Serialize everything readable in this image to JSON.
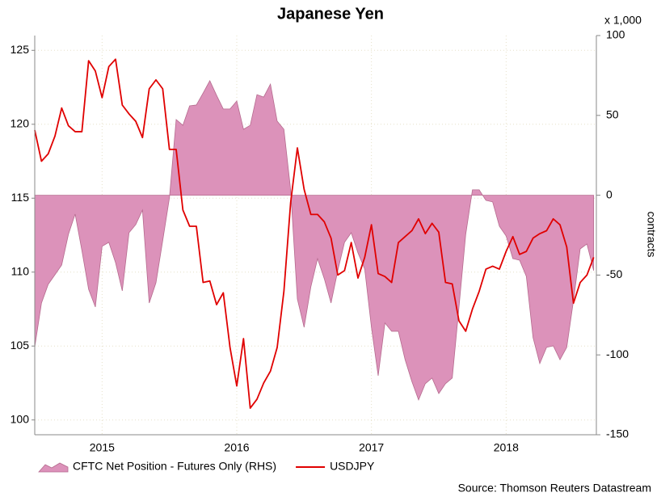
{
  "chart_data": {
    "type": "line",
    "title": "Japanese Yen",
    "source": "Source: Thomson Reuters Datastream",
    "y2_label": "contracts",
    "y2_unit": "x 1,000",
    "xlim": [
      2015,
      2019.17
    ],
    "xticks": [
      {
        "value": 2015.5,
        "label": "2015"
      },
      {
        "value": 2016.5,
        "label": "2016"
      },
      {
        "value": 2017.5,
        "label": "2017"
      },
      {
        "value": 2018.5,
        "label": "2018"
      }
    ],
    "ylim": [
      99,
      126
    ],
    "yticks": [
      100,
      105,
      110,
      115,
      120,
      125
    ],
    "y2lim": [
      -150,
      100
    ],
    "y2ticks": [
      -150,
      -100,
      -50,
      0,
      50,
      100
    ],
    "grid": true,
    "legend": "bottom-left",
    "x": [
      2015.0,
      2015.05,
      2015.1,
      2015.15,
      2015.2,
      2015.25,
      2015.3,
      2015.35,
      2015.4,
      2015.45,
      2015.5,
      2015.55,
      2015.6,
      2015.65,
      2015.7,
      2015.75,
      2015.8,
      2015.85,
      2015.9,
      2015.95,
      2016.0,
      2016.05,
      2016.1,
      2016.15,
      2016.2,
      2016.25,
      2016.3,
      2016.35,
      2016.4,
      2016.45,
      2016.5,
      2016.55,
      2016.6,
      2016.65,
      2016.7,
      2016.75,
      2016.8,
      2016.85,
      2016.9,
      2016.95,
      2017.0,
      2017.05,
      2017.1,
      2017.15,
      2017.2,
      2017.25,
      2017.3,
      2017.35,
      2017.4,
      2017.45,
      2017.5,
      2017.55,
      2017.6,
      2017.65,
      2017.7,
      2017.75,
      2017.8,
      2017.85,
      2017.9,
      2017.95,
      2018.0,
      2018.05,
      2018.1,
      2018.15,
      2018.2,
      2018.25,
      2018.3,
      2018.35,
      2018.4,
      2018.45,
      2018.5,
      2018.55,
      2018.6,
      2018.65,
      2018.7,
      2018.75,
      2018.8,
      2018.85,
      2018.9,
      2018.95,
      2019.0,
      2019.05,
      2019.1,
      2019.15
    ],
    "series": [
      {
        "name": "CFTC Net Position - Futures Only (RHS)",
        "type": "area",
        "axis": "y2",
        "color": "#dc92ba",
        "values": [
          -95,
          -67.5,
          -55.8,
          -49.8,
          -43.7,
          -24.5,
          -11.8,
          -34.6,
          -58.9,
          -70,
          -32,
          -29.5,
          -42.2,
          -59.9,
          -23.5,
          -18.4,
          -9.3,
          -67.5,
          -54.8,
          -28.5,
          -1.7,
          47.4,
          43.8,
          56,
          56.5,
          64,
          71.7,
          62.6,
          54,
          54,
          59,
          41.3,
          43.8,
          63,
          61.5,
          69.6,
          46.4,
          41.3,
          3.4,
          -65,
          -82.7,
          -57.4,
          -39.7,
          -52.3,
          -67.5,
          -47.2,
          -29.5,
          -23.5,
          -36.1,
          -46.2,
          -82.7,
          -113,
          -80,
          -85.2,
          -85.2,
          -103,
          -116.6,
          -128.2,
          -118,
          -114.5,
          -124.2,
          -118,
          -114.5,
          -70,
          -24.5,
          3.4,
          3.4,
          -3.2,
          -4.2,
          -19.4,
          -25.5,
          -39.7,
          -40.7,
          -50.8,
          -89.2,
          -105.4,
          -95.3,
          -94.3,
          -103,
          -95.3,
          -66,
          -33.6,
          -30.5,
          -47.2
        ]
      },
      {
        "name": "USDJPY",
        "type": "line",
        "color": "#e00000",
        "values": [
          119.6,
          117.5,
          118.0,
          119.2,
          121.1,
          119.9,
          119.5,
          119.5,
          124.3,
          123.6,
          121.8,
          123.9,
          124.4,
          121.3,
          120.7,
          120.2,
          119.1,
          122.4,
          123.0,
          122.4,
          118.3,
          118.3,
          114.2,
          113.1,
          113.1,
          109.3,
          109.4,
          107.8,
          108.6,
          104.9,
          102.3,
          105.5,
          100.8,
          101.4,
          102.5,
          103.3,
          104.9,
          108.7,
          114.7,
          118.4,
          115.6,
          113.9,
          113.9,
          113.4,
          112.3,
          109.8,
          110.1,
          112.0,
          109.6,
          111.0,
          113.2,
          109.9,
          109.7,
          109.3,
          112.0,
          112.4,
          112.8,
          113.6,
          112.6,
          113.3,
          112.7,
          109.3,
          109.2,
          106.7,
          106.0,
          107.5,
          108.7,
          110.2,
          110.4,
          110.2,
          111.4,
          112.4,
          111.2,
          111.4,
          112.3,
          112.6,
          112.8,
          113.6,
          113.2,
          111.7,
          107.9,
          109.3,
          109.8,
          111.0
        ]
      }
    ]
  }
}
